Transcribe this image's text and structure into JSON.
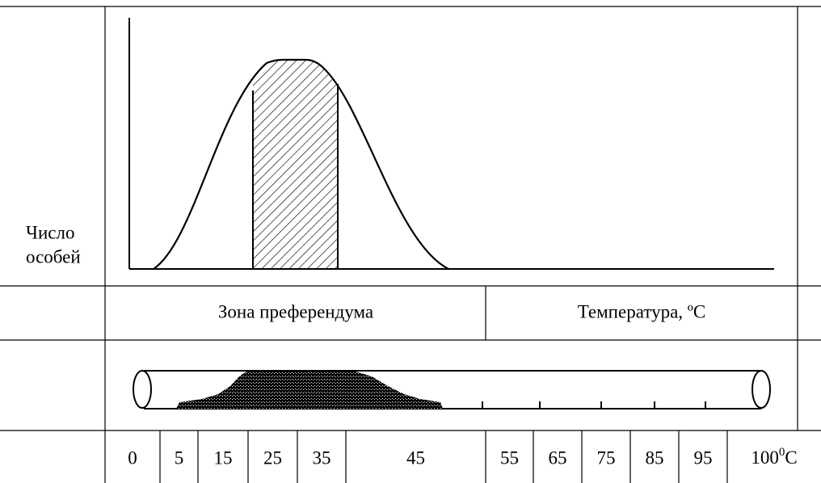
{
  "left_label": [
    "Число",
    "особей"
  ],
  "middle_row": {
    "preferendum": "Зона преферендума",
    "temperature": "Температура, ºC"
  },
  "scale": [
    "0",
    "5",
    "15",
    "25",
    "35",
    "45",
    "55",
    "65",
    "75",
    "85",
    "95"
  ],
  "scale_last": {
    "number": "100",
    "sup": "0",
    "unit": "C"
  }
}
